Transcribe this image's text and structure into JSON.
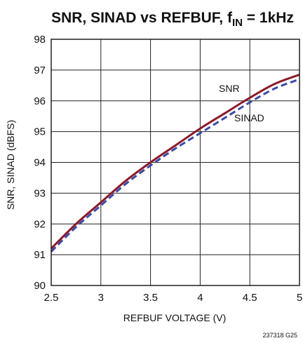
{
  "chart_data": {
    "type": "line",
    "title": "SNR, SINAD vs REFBUF, f",
    "title_subscript": "IN",
    "title_suffix": " = 1kHz",
    "xlabel": "REFBUF VOLTAGE (V)",
    "ylabel": "SNR, SINAD (dBFS)",
    "xlim": [
      2.5,
      5
    ],
    "ylim": [
      90,
      98
    ],
    "x_ticks": [
      "2.5",
      "3",
      "3.5",
      "4",
      "4.5",
      "5"
    ],
    "y_ticks": [
      "90",
      "91",
      "92",
      "93",
      "94",
      "95",
      "96",
      "97",
      "98"
    ],
    "grid": true,
    "series": [
      {
        "name": "SNR",
        "color": "#8b1a2b",
        "style": "solid",
        "x": [
          2.5,
          2.75,
          3.0,
          3.25,
          3.5,
          3.75,
          4.0,
          4.25,
          4.5,
          4.75,
          5.0
        ],
        "y": [
          91.2,
          92.0,
          92.7,
          93.4,
          94.0,
          94.55,
          95.1,
          95.6,
          96.1,
          96.55,
          96.85
        ]
      },
      {
        "name": "SINAD",
        "color": "#3a4aa8",
        "style": "dashed",
        "x": [
          2.5,
          2.75,
          3.0,
          3.25,
          3.5,
          3.75,
          4.0,
          4.25,
          4.5,
          4.75,
          5.0
        ],
        "y": [
          91.1,
          91.9,
          92.6,
          93.3,
          93.9,
          94.45,
          94.95,
          95.45,
          95.95,
          96.4,
          96.7
        ]
      }
    ]
  },
  "figure_id": "237318 G25"
}
